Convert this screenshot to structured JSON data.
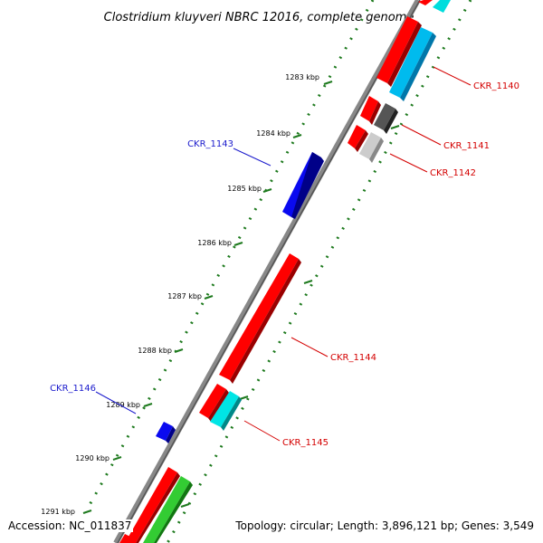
{
  "title": "Clostridium kluyveri NBRC 12016, complete genome",
  "footer": {
    "accession": "Accession: NC_011837",
    "topology": "Topology: circular; Length: 3,896,121 bp; Genes: 3,549"
  },
  "kbp_ticks": [
    "1283 kbp",
    "1284 kbp",
    "1285 kbp",
    "1286 kbp",
    "1287 kbp",
    "1288 kbp",
    "1289 kbp",
    "1290 kbp",
    "1291 kbp"
  ],
  "gene_labels": [
    {
      "name": "CKR_1140",
      "strand": "reverse",
      "color": "#d40000"
    },
    {
      "name": "CKR_1141",
      "strand": "reverse",
      "color": "#d40000"
    },
    {
      "name": "CKR_1142",
      "strand": "reverse",
      "color": "#d40000"
    },
    {
      "name": "CKR_1143",
      "strand": "forward",
      "color": "#1a1acc"
    },
    {
      "name": "CKR_1144",
      "strand": "reverse",
      "color": "#d40000"
    },
    {
      "name": "CKR_1145",
      "strand": "reverse",
      "color": "#d40000"
    },
    {
      "name": "CKR_1146",
      "strand": "forward",
      "color": "#1a1acc"
    }
  ],
  "colors": {
    "backbone": "#777777",
    "tick_marks": "#1e7a1e",
    "cds_forward": "#0000ee",
    "cds_reverse": "#ff0000",
    "cyan_feature": "#00e5e5",
    "grey_feature": "#777777",
    "green_feature": "#33cc33"
  }
}
